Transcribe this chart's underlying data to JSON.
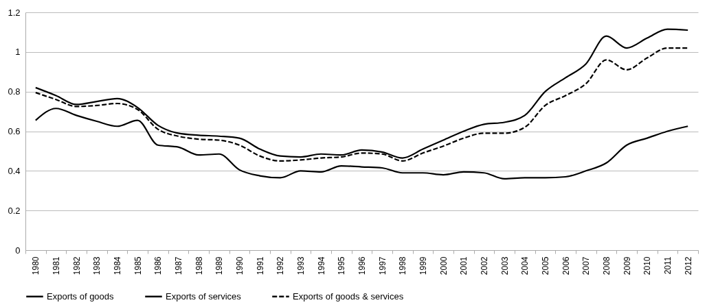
{
  "chart_data": {
    "type": "line",
    "categories": [
      "1980",
      "1981",
      "1982",
      "1983",
      "1984",
      "1985",
      "1986",
      "1987",
      "1988",
      "1989",
      "1990",
      "1991",
      "1992",
      "1993",
      "1994",
      "1995",
      "1996",
      "1997",
      "1998",
      "1999",
      "2000",
      "2001",
      "2002",
      "2003",
      "2004",
      "2005",
      "2006",
      "2007",
      "2008",
      "2009",
      "2010",
      "2011",
      "2012"
    ],
    "series": [
      {
        "name": "Exports of goods",
        "color": "#000000",
        "line_style": "solid",
        "values": [
          0.82,
          0.78,
          0.735,
          0.75,
          0.765,
          0.72,
          0.63,
          0.59,
          0.58,
          0.575,
          0.565,
          0.51,
          0.475,
          0.47,
          0.485,
          0.48,
          0.505,
          0.495,
          0.465,
          0.51,
          0.555,
          0.6,
          0.635,
          0.645,
          0.68,
          0.8,
          0.87,
          0.94,
          1.08,
          1.02,
          1.07,
          1.115,
          1.11
        ]
      },
      {
        "name": "Exports of services",
        "color": "#000000",
        "line_style": "solid",
        "values": [
          0.655,
          0.715,
          0.68,
          0.65,
          0.625,
          0.655,
          0.53,
          0.52,
          0.48,
          0.485,
          0.405,
          0.375,
          0.365,
          0.4,
          0.395,
          0.425,
          0.42,
          0.415,
          0.39,
          0.39,
          0.38,
          0.395,
          0.39,
          0.36,
          0.365,
          0.365,
          0.37,
          0.4,
          0.44,
          0.53,
          0.565,
          0.6,
          0.625
        ]
      },
      {
        "name": "Exports of goods & services",
        "color": "#000000",
        "line_style": "dashed",
        "values": [
          0.795,
          0.76,
          0.725,
          0.73,
          0.74,
          0.71,
          0.61,
          0.575,
          0.56,
          0.555,
          0.53,
          0.475,
          0.45,
          0.455,
          0.465,
          0.47,
          0.49,
          0.485,
          0.45,
          0.49,
          0.525,
          0.565,
          0.59,
          0.59,
          0.62,
          0.73,
          0.78,
          0.84,
          0.96,
          0.91,
          0.97,
          1.02,
          1.02
        ]
      }
    ],
    "ylim": [
      0,
      1.2
    ],
    "yticks": [
      0,
      0.2,
      0.4,
      0.6,
      0.8,
      1,
      1.2
    ],
    "grid": "y",
    "legend": "bottom",
    "marker": "none"
  }
}
